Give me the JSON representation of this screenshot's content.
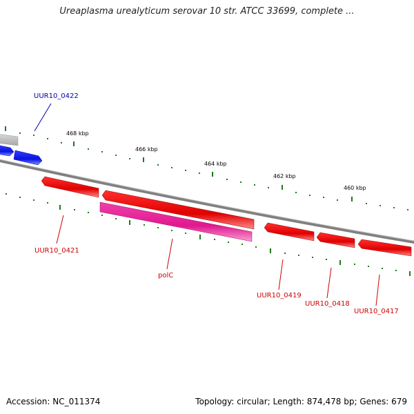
{
  "title": "Ureaplasma urealyticum serovar 10 str. ATCC 33699, complete ...",
  "accession": "Accession: NC_011374",
  "summary": "Topology: circular; Length: 874,478 bp; Genes: 679",
  "colors": {
    "backbone": "#808080",
    "forward_gene": "#1414e6",
    "reverse_gene": "#e60000",
    "rna_or_other": "#e61e96",
    "partial_gene": "#bfbfbf",
    "tick": "#1a7a1a",
    "forward_label": "#0000aa",
    "reverse_label": "#cc0000"
  },
  "ruler": {
    "ticks": [
      "468 kbp",
      "466 kbp",
      "464 kbp",
      "462 kbp",
      "460 kbp"
    ]
  },
  "genes": [
    {
      "name": "UUR10_0422",
      "strand": "forward"
    },
    {
      "name": "UUR10_0421",
      "strand": "reverse"
    },
    {
      "name": "polC",
      "strand": "reverse"
    },
    {
      "name": "UUR10_0419",
      "strand": "reverse"
    },
    {
      "name": "UUR10_0418",
      "strand": "reverse"
    },
    {
      "name": "UUR10_0417",
      "strand": "reverse"
    }
  ]
}
